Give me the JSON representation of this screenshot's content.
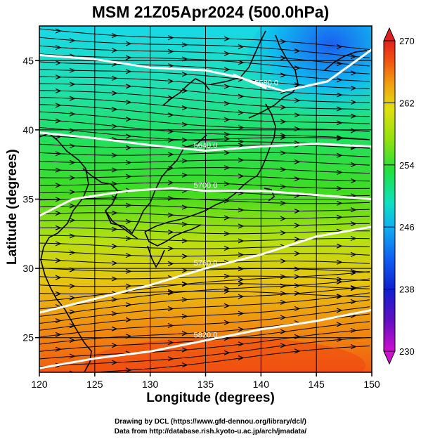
{
  "title": "MSM 21Z05Apr2024 (500.0hPa)",
  "xlabel": "Longitude (degrees)",
  "ylabel": "Latitude  (degrees)",
  "credit_line1": "Drawing by DCL (https://www.gfd-dennou.org/library/dcl/)",
  "credit_line2": "Data from http://database.rish.kyoto-u.ac.jp/arch/jmadata/",
  "chart_data": {
    "type": "heatmap",
    "xlabel": "Longitude (degrees)",
    "ylabel": "Latitude  (degrees)",
    "xlim": [
      120,
      150
    ],
    "ylim": [
      22.5,
      47.5
    ],
    "x_ticks": [
      "120",
      "125",
      "130",
      "135",
      "140",
      "145",
      "150"
    ],
    "y_ticks": [
      "25",
      "30",
      "35",
      "40",
      "45"
    ],
    "colorbar": {
      "min": 230,
      "max": 270,
      "tick_labels": [
        "270",
        "262",
        "254",
        "246",
        "238",
        "230"
      ],
      "colors": [
        "#d010d0",
        "#6010c0",
        "#1020d0",
        "#1060f0",
        "#10b0f0",
        "#10e0c0",
        "#20e040",
        "#90e010",
        "#e0e010",
        "#f0a010",
        "#f05010",
        "#e02020"
      ]
    },
    "contours": [
      {
        "label": "",
        "points": [
          [
            120,
            45.4
          ],
          [
            125,
            45.1
          ],
          [
            130,
            44.5
          ],
          [
            135,
            44.3
          ],
          [
            138,
            43.8
          ],
          [
            142,
            42.8
          ],
          [
            146,
            43.5
          ],
          [
            150,
            45.8
          ]
        ]
      },
      {
        "label": "5580.0",
        "points": [
          [
            137.5,
            44.0
          ],
          [
            140.5,
            43.0
          ]
        ]
      },
      {
        "label": "5640.0",
        "points": [
          [
            120,
            39.8
          ],
          [
            125,
            39.4
          ],
          [
            130,
            38.9
          ],
          [
            135,
            38.5
          ],
          [
            140,
            38.8
          ],
          [
            145,
            39.0
          ],
          [
            150,
            38.8
          ]
        ]
      },
      {
        "label": "5700.0",
        "points": [
          [
            120,
            33.8
          ],
          [
            123,
            35.0
          ],
          [
            128,
            35.6
          ],
          [
            132,
            35.8
          ],
          [
            135,
            35.6
          ],
          [
            140,
            35.6
          ],
          [
            145,
            35.3
          ],
          [
            150,
            35.0
          ]
        ]
      },
      {
        "label": "5760.0",
        "points": [
          [
            120,
            26.8
          ],
          [
            125,
            27.8
          ],
          [
            130,
            28.8
          ],
          [
            135,
            30.0
          ],
          [
            140,
            31.0
          ],
          [
            145,
            32.3
          ],
          [
            150,
            33.0
          ]
        ]
      },
      {
        "label": "5820.0",
        "points": [
          [
            120,
            22.8
          ],
          [
            125,
            23.5
          ],
          [
            130,
            24.0
          ],
          [
            135,
            24.8
          ],
          [
            140,
            25.6
          ],
          [
            145,
            26.2
          ],
          [
            150,
            27.0
          ]
        ]
      }
    ],
    "grid": true,
    "legend": "colorbar-right"
  }
}
